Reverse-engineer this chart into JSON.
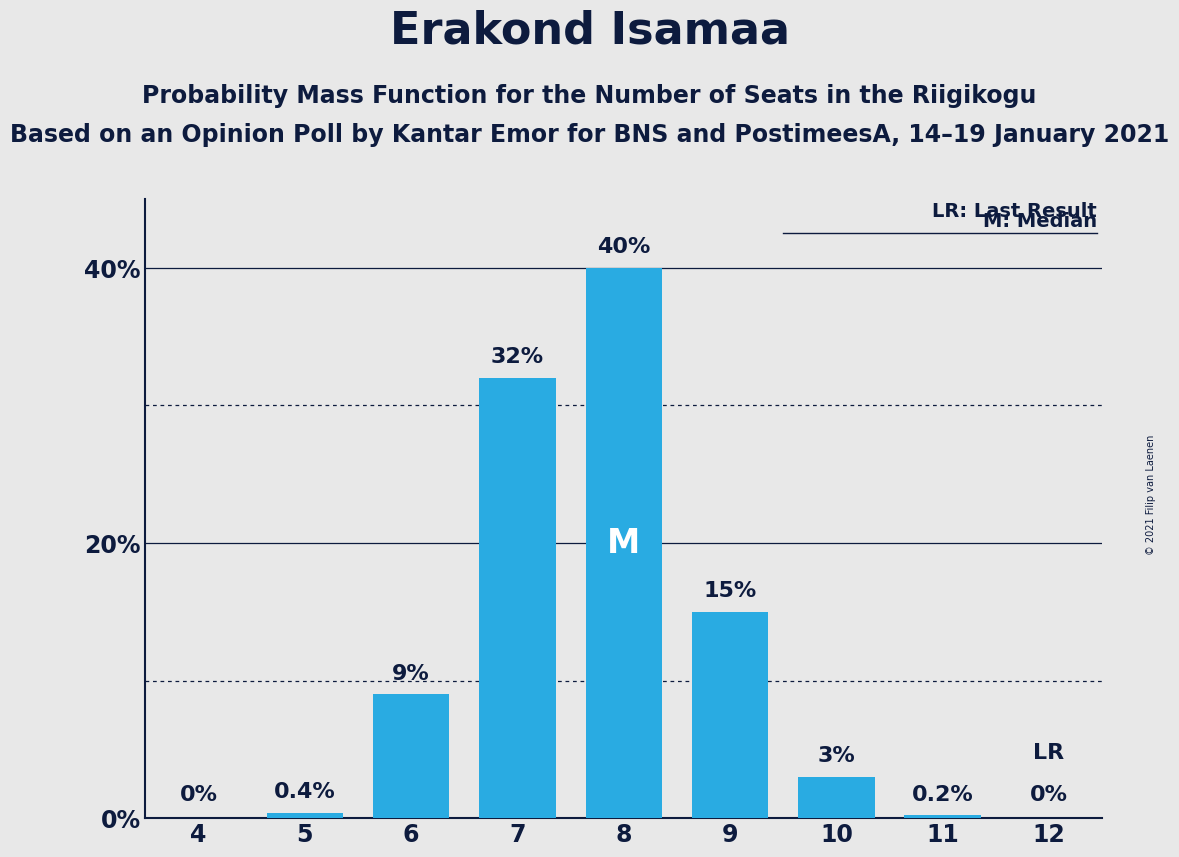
{
  "title": "Erakond Isamaa",
  "subtitle1": "Probability Mass Function for the Number of Seats in the Riigikogu",
  "subtitle2": "Based on an Opinion Poll by Kantar Emor for BNS and PostimeesA, 14–19 January 2021",
  "copyright": "© 2021 Filip van Laenen",
  "seats": [
    4,
    5,
    6,
    7,
    8,
    9,
    10,
    11,
    12
  ],
  "probabilities": [
    0.0,
    0.4,
    9.0,
    32.0,
    40.0,
    15.0,
    3.0,
    0.2,
    0.0
  ],
  "labels": [
    "0%",
    "0.4%",
    "9%",
    "32%",
    "40%",
    "15%",
    "3%",
    "0.2%",
    "0%"
  ],
  "zero_bar_seats": [
    4,
    12
  ],
  "bar_color": "#29ABE2",
  "background_color": "#E8E8E8",
  "text_color": "#0D1B3E",
  "median_seat": 8,
  "last_result_seat": 12,
  "ylim": [
    0,
    45
  ],
  "yticks": [
    0,
    20,
    40
  ],
  "ytick_labels": [
    "0%",
    "20%",
    "40%"
  ],
  "dotted_lines": [
    10,
    30
  ],
  "legend_lr": "LR: Last Result",
  "legend_m": "M: Median",
  "title_fontsize": 32,
  "subtitle1_fontsize": 17,
  "subtitle2_fontsize": 17,
  "label_fontsize": 16,
  "tick_fontsize": 17,
  "bar_width": 0.72
}
